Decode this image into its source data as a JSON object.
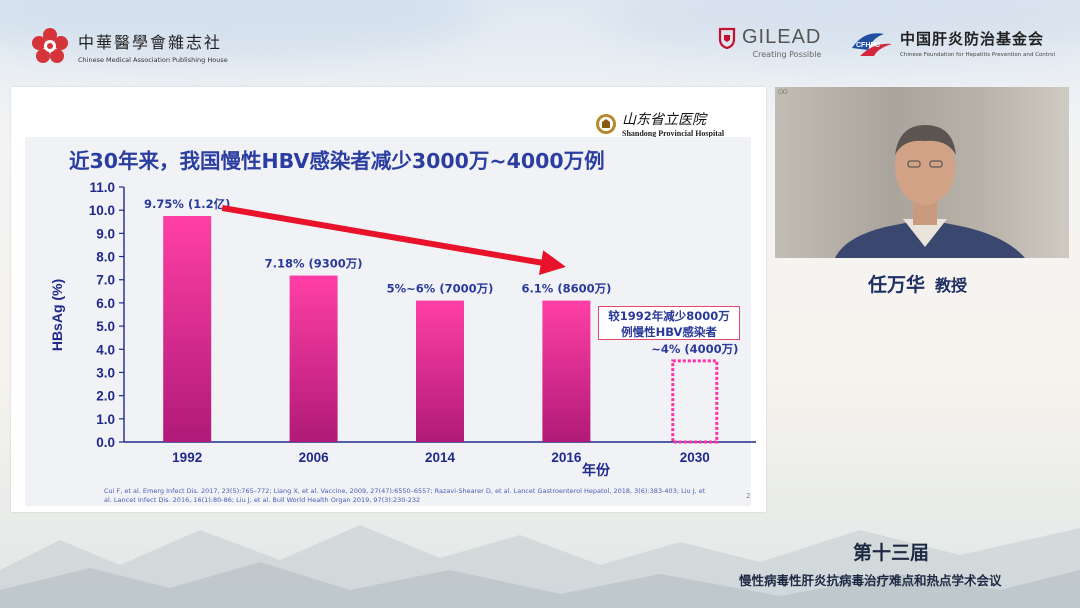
{
  "header": {
    "publisher_cn": "中華醫學會雜志社",
    "publisher_en": "Chinese Medical Association Publishing House",
    "sponsor_name": "GILEAD",
    "sponsor_tagline": "Creating Possible",
    "foundation_badge": "CFHPC",
    "foundation_cn": "中国肝炎防治基金会",
    "foundation_en": "Chinese Foundation for Hepatitis Prevention and Control"
  },
  "slide": {
    "hospital_cn": "山东省立医院",
    "hospital_en": "Shandong Provincial Hospital",
    "title": "近30年来，我国慢性HBV感染者减少3000万~4000万例",
    "note_line1": "较1992年减少8000万",
    "note_line2": "例慢性HBV感染者",
    "references": "Cui F, et al. Emerg Infect Dis. 2017, 23(5):765–772; Liang X, et al. Vaccine, 2009, 27(47):6550–6557; Razavi-Shearer D, et al. Lancet Gastroenterol Hepatol, 2018, 3(6):383-403; Liu J, et al. Lancet Infect Dis. 2016, 16(1):80-86; Liu J, et al. Bull World Health Organ 2019, 97(3):230-232",
    "page_number": "2"
  },
  "chart_data": {
    "type": "bar",
    "categories": [
      "1992",
      "2006",
      "2014",
      "2016",
      "2030"
    ],
    "values": [
      9.75,
      7.18,
      6.1,
      6.1,
      3.5
    ],
    "projected": [
      false,
      false,
      false,
      false,
      true
    ],
    "data_labels": [
      "9.75% (1.2亿)",
      "7.18% (9300万)",
      "5%~6% (7000万)",
      "6.1% (8600万)",
      "~4% (4000万)"
    ],
    "ylabel": "HBsAg (%)",
    "xlabel": "年份",
    "ylim": [
      0,
      11
    ],
    "yticks": [
      "0.0",
      "1.0",
      "2.0",
      "3.0",
      "4.0",
      "5.0",
      "6.0",
      "7.0",
      "8.0",
      "9.0",
      "10.0",
      "11.0"
    ],
    "trend_arrow": {
      "from_category": "1992",
      "to_category": "2016",
      "color": "#e8132a"
    },
    "colors": {
      "bar_top": "#ff3fa6",
      "bar_bottom": "#b01a78",
      "projected_outline": "#ff2fa8",
      "axis": "#1f2a8a",
      "label": "#2a3a9a"
    }
  },
  "video": {
    "camera_label": "▢▢"
  },
  "speaker": {
    "name": "任万华",
    "title": "教授"
  },
  "conference": {
    "edition": "第十三届",
    "name": "慢性病毒性肝炎抗病毒治疗难点和热点学术会议"
  }
}
